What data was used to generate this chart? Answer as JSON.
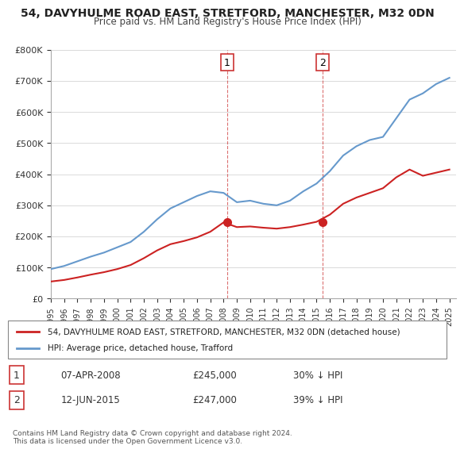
{
  "title": "54, DAVYHULME ROAD EAST, STRETFORD, MANCHESTER, M32 0DN",
  "subtitle": "Price paid vs. HM Land Registry's House Price Index (HPI)",
  "legend_line1": "54, DAVYHULME ROAD EAST, STRETFORD, MANCHESTER, M32 0DN (detached house)",
  "legend_line2": "HPI: Average price, detached house, Trafford",
  "sale1_date": "07-APR-2008",
  "sale1_price": 245000,
  "sale1_pct": "30% ↓ HPI",
  "sale2_date": "12-JUN-2015",
  "sale2_price": 247000,
  "sale2_pct": "39% ↓ HPI",
  "footnote": "Contains HM Land Registry data © Crown copyright and database right 2024.\nThis data is licensed under the Open Government Licence v3.0.",
  "hpi_color": "#6699cc",
  "price_color": "#cc2222",
  "marker_color": "#cc2222",
  "vline_color": "#cc3333",
  "ylim": [
    0,
    800000
  ],
  "xlim_start": 1995.0,
  "xlim_end": 2025.5,
  "sale1_x": 2008.27,
  "sale2_x": 2015.45,
  "hpi_x": [
    1995,
    1996,
    1997,
    1998,
    1999,
    2000,
    2001,
    2002,
    2003,
    2004,
    2005,
    2006,
    2007,
    2008,
    2009,
    2010,
    2011,
    2012,
    2013,
    2014,
    2015,
    2016,
    2017,
    2018,
    2019,
    2020,
    2021,
    2022,
    2023,
    2024,
    2025
  ],
  "hpi_y": [
    95000,
    105000,
    120000,
    135000,
    148000,
    165000,
    182000,
    215000,
    255000,
    290000,
    310000,
    330000,
    345000,
    340000,
    310000,
    315000,
    305000,
    300000,
    315000,
    345000,
    370000,
    410000,
    460000,
    490000,
    510000,
    520000,
    580000,
    640000,
    660000,
    690000,
    710000
  ],
  "price_x": [
    1995,
    1996,
    1997,
    1998,
    1999,
    2000,
    2001,
    2002,
    2003,
    2004,
    2005,
    2006,
    2007,
    2008,
    2009,
    2010,
    2011,
    2012,
    2013,
    2014,
    2015,
    2016,
    2017,
    2018,
    2019,
    2020,
    2021,
    2022,
    2023,
    2024,
    2025
  ],
  "price_y": [
    55000,
    60000,
    68000,
    77000,
    85000,
    95000,
    108000,
    130000,
    155000,
    175000,
    185000,
    197000,
    215000,
    245000,
    230000,
    232000,
    228000,
    225000,
    230000,
    238000,
    247000,
    270000,
    305000,
    325000,
    340000,
    355000,
    390000,
    415000,
    395000,
    405000,
    415000
  ]
}
